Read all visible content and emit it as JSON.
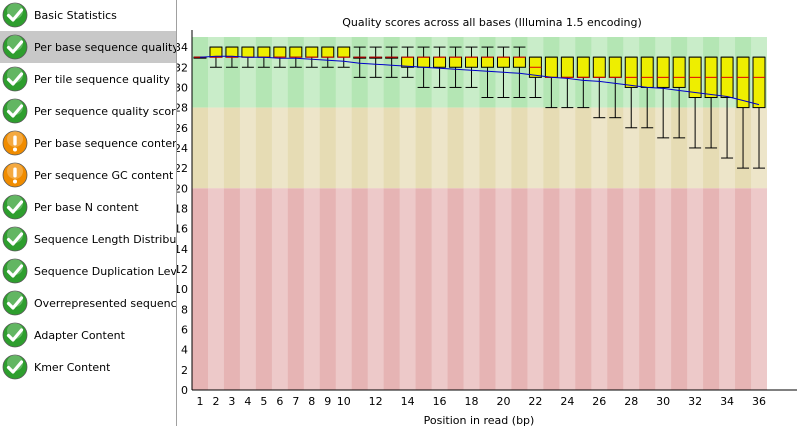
{
  "sidebar": {
    "items": [
      {
        "label": "Basic Statistics",
        "status": "pass"
      },
      {
        "label": "Per base sequence quality",
        "status": "pass",
        "selected": true
      },
      {
        "label": "Per tile sequence quality",
        "status": "pass"
      },
      {
        "label": "Per sequence quality scores",
        "status": "pass"
      },
      {
        "label": "Per base sequence content",
        "status": "warn"
      },
      {
        "label": "Per sequence GC content",
        "status": "warn"
      },
      {
        "label": "Per base N content",
        "status": "pass"
      },
      {
        "label": "Sequence Length Distribution",
        "status": "pass"
      },
      {
        "label": "Sequence Duplication Levels",
        "status": "pass"
      },
      {
        "label": "Overrepresented sequences",
        "status": "pass"
      },
      {
        "label": "Adapter Content",
        "status": "pass"
      },
      {
        "label": "Kmer Content",
        "status": "pass"
      }
    ],
    "icons": {
      "pass": "check-icon",
      "warn": "warning-icon"
    }
  },
  "colors": {
    "pass": "#2e9e2e",
    "warn": "#f08c00",
    "zone_good": "#b4e6b4",
    "zone_ok": "#e6dcb4",
    "zone_bad": "#e6b4b4",
    "box": "#eeee00",
    "median": "#e00000",
    "mean": "#0000c8"
  },
  "chart_data": {
    "type": "boxplot",
    "title": "Quality scores across all bases (Illumina 1.5 encoding)",
    "xlabel": "Position in read (bp)",
    "ylabel": "",
    "ylim": [
      0,
      35
    ],
    "yticks": [
      0,
      2,
      4,
      6,
      8,
      10,
      12,
      14,
      16,
      18,
      20,
      22,
      24,
      26,
      28,
      30,
      32,
      34
    ],
    "positions": [
      1,
      2,
      3,
      4,
      5,
      6,
      7,
      8,
      9,
      10,
      11,
      12,
      13,
      14,
      15,
      16,
      17,
      18,
      19,
      20,
      21,
      22,
      23,
      24,
      25,
      26,
      27,
      28,
      29,
      30,
      31,
      32,
      33,
      34,
      35,
      36
    ],
    "xtick_labels": [
      "1",
      "2",
      "3",
      "4",
      "5",
      "6",
      "7",
      "8",
      "9",
      "10",
      "",
      "12",
      "",
      "14",
      "",
      "16",
      "",
      "18",
      "",
      "20",
      "",
      "22",
      "",
      "24",
      "",
      "26",
      "",
      "28",
      "",
      "30",
      "",
      "32",
      "",
      "34",
      "",
      "36"
    ],
    "zones": [
      {
        "name": "good",
        "from": 28,
        "to": 35
      },
      {
        "name": "ok",
        "from": 20,
        "to": 28
      },
      {
        "name": "bad",
        "from": 0,
        "to": 20
      }
    ],
    "boxes": [
      {
        "q1": 33,
        "median": 33,
        "q3": 33,
        "low": 33,
        "high": 33,
        "mean": 33.0
      },
      {
        "q1": 33,
        "median": 33,
        "q3": 34,
        "low": 32,
        "high": 34,
        "mean": 33.1
      },
      {
        "q1": 33,
        "median": 33,
        "q3": 34,
        "low": 32,
        "high": 34,
        "mean": 33.1
      },
      {
        "q1": 33,
        "median": 33,
        "q3": 34,
        "low": 32,
        "high": 34,
        "mean": 33.0
      },
      {
        "q1": 33,
        "median": 33,
        "q3": 34,
        "low": 32,
        "high": 34,
        "mean": 33.0
      },
      {
        "q1": 33,
        "median": 33,
        "q3": 34,
        "low": 32,
        "high": 34,
        "mean": 32.9
      },
      {
        "q1": 33,
        "median": 33,
        "q3": 34,
        "low": 32,
        "high": 34,
        "mean": 32.9
      },
      {
        "q1": 33,
        "median": 33,
        "q3": 34,
        "low": 32,
        "high": 34,
        "mean": 32.8
      },
      {
        "q1": 33,
        "median": 33,
        "q3": 34,
        "low": 32,
        "high": 34,
        "mean": 32.7
      },
      {
        "q1": 33,
        "median": 33,
        "q3": 34,
        "low": 32,
        "high": 34,
        "mean": 32.6
      },
      {
        "q1": 33,
        "median": 33,
        "q3": 33,
        "low": 31,
        "high": 34,
        "mean": 32.4
      },
      {
        "q1": 33,
        "median": 33,
        "q3": 33,
        "low": 31,
        "high": 34,
        "mean": 32.3
      },
      {
        "q1": 33,
        "median": 33,
        "q3": 33,
        "low": 31,
        "high": 34,
        "mean": 32.2
      },
      {
        "q1": 32,
        "median": 33,
        "q3": 33,
        "low": 31,
        "high": 34,
        "mean": 32.1
      },
      {
        "q1": 32,
        "median": 33,
        "q3": 33,
        "low": 30,
        "high": 34,
        "mean": 32.0
      },
      {
        "q1": 32,
        "median": 33,
        "q3": 33,
        "low": 30,
        "high": 34,
        "mean": 31.9
      },
      {
        "q1": 32,
        "median": 33,
        "q3": 33,
        "low": 30,
        "high": 34,
        "mean": 31.8
      },
      {
        "q1": 32,
        "median": 33,
        "q3": 33,
        "low": 30,
        "high": 34,
        "mean": 31.7
      },
      {
        "q1": 32,
        "median": 33,
        "q3": 33,
        "low": 29,
        "high": 34,
        "mean": 31.6
      },
      {
        "q1": 32,
        "median": 33,
        "q3": 33,
        "low": 29,
        "high": 34,
        "mean": 31.5
      },
      {
        "q1": 32,
        "median": 33,
        "q3": 33,
        "low": 29,
        "high": 34,
        "mean": 31.4
      },
      {
        "q1": 31,
        "median": 32,
        "q3": 33,
        "low": 29,
        "high": 33,
        "mean": 31.2
      },
      {
        "q1": 31,
        "median": 31,
        "q3": 33,
        "low": 28,
        "high": 33,
        "mean": 31.0
      },
      {
        "q1": 31,
        "median": 31,
        "q3": 33,
        "low": 28,
        "high": 33,
        "mean": 30.9
      },
      {
        "q1": 31,
        "median": 31,
        "q3": 33,
        "low": 28,
        "high": 33,
        "mean": 30.7
      },
      {
        "q1": 31,
        "median": 31,
        "q3": 33,
        "low": 27,
        "high": 33,
        "mean": 30.6
      },
      {
        "q1": 31,
        "median": 31,
        "q3": 33,
        "low": 27,
        "high": 33,
        "mean": 30.4
      },
      {
        "q1": 30,
        "median": 31,
        "q3": 33,
        "low": 26,
        "high": 33,
        "mean": 30.2
      },
      {
        "q1": 30,
        "median": 31,
        "q3": 33,
        "low": 26,
        "high": 33,
        "mean": 30.0
      },
      {
        "q1": 30,
        "median": 31,
        "q3": 33,
        "low": 25,
        "high": 33,
        "mean": 29.9
      },
      {
        "q1": 30,
        "median": 31,
        "q3": 33,
        "low": 25,
        "high": 33,
        "mean": 29.7
      },
      {
        "q1": 29,
        "median": 31,
        "q3": 33,
        "low": 24,
        "high": 33,
        "mean": 29.5
      },
      {
        "q1": 29,
        "median": 31,
        "q3": 33,
        "low": 24,
        "high": 33,
        "mean": 29.3
      },
      {
        "q1": 29,
        "median": 31,
        "q3": 33,
        "low": 23,
        "high": 33,
        "mean": 29.1
      },
      {
        "q1": 28,
        "median": 31,
        "q3": 33,
        "low": 22,
        "high": 33,
        "mean": 28.7
      },
      {
        "q1": 28,
        "median": 31,
        "q3": 33,
        "low": 22,
        "high": 33,
        "mean": 28.3
      }
    ]
  }
}
